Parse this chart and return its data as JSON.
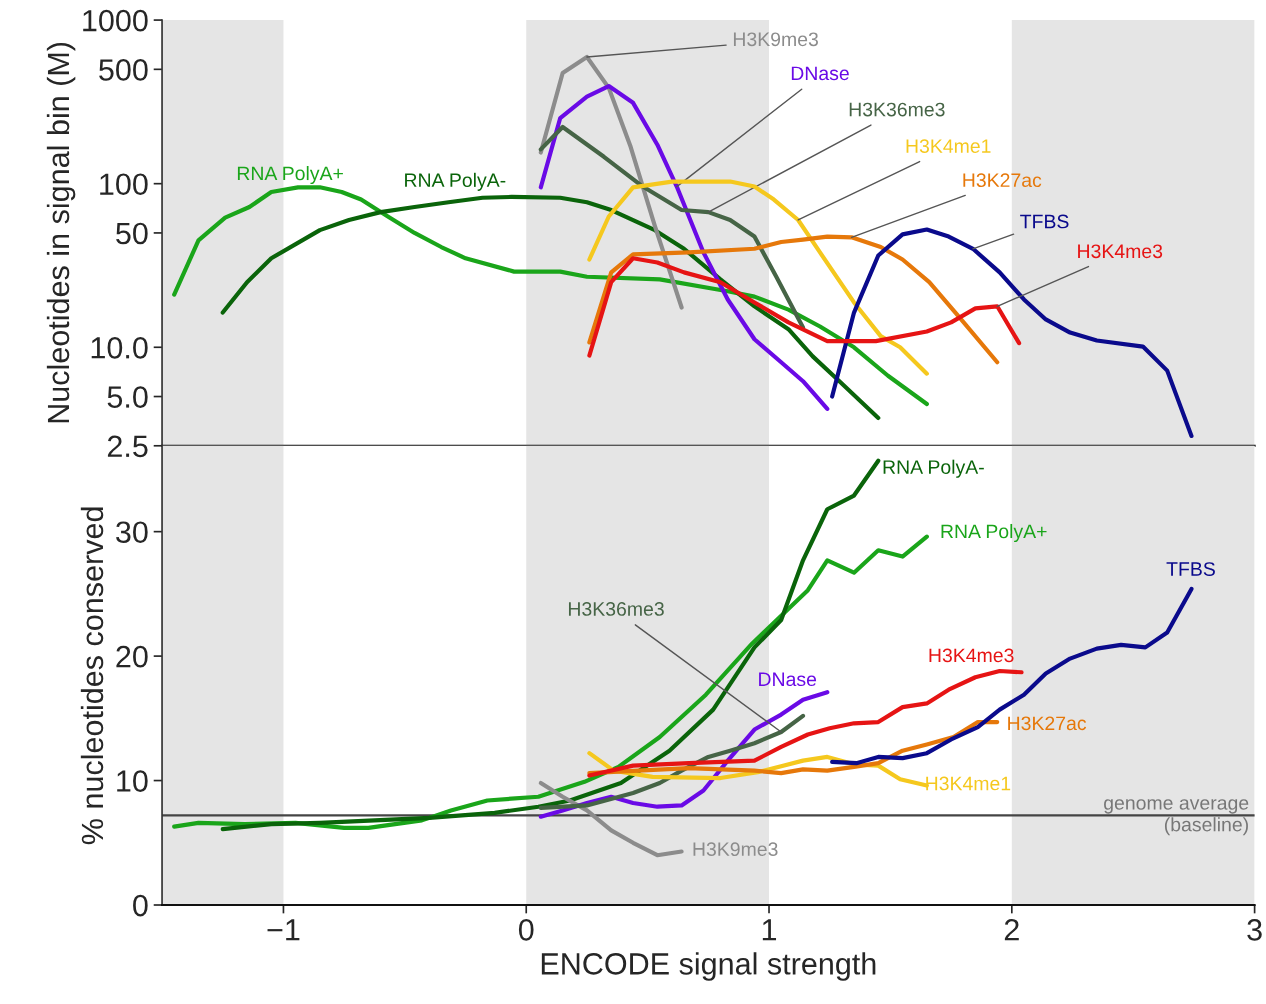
{
  "chart_data": [
    {
      "type": "line",
      "ylabel": "Nucleotides in signal bin (M)",
      "log": "y",
      "grid": false,
      "tick_labels": "y",
      "legend": false,
      "xlim": [
        -1.5,
        3
      ],
      "ylim": [
        2.5,
        1000
      ],
      "yticks": [
        2.5,
        {
          "value": 5,
          "label": "5.0"
        },
        {
          "value": 10,
          "label": "10.0"
        },
        50,
        100,
        500,
        1000
      ],
      "bands": [
        {
          "axis": "x",
          "from": -1.5,
          "to": -1,
          "color": "#e5e5e5"
        },
        {
          "axis": "x",
          "from": 0,
          "to": 1,
          "color": "#e5e5e5"
        },
        {
          "axis": "x",
          "from": 2,
          "to": 3,
          "color": "#e5e5e5"
        }
      ],
      "series": [
        {
          "name": "RNA PolyA+",
          "color": "#1aa51a",
          "x": [
            -1.45,
            -1.35,
            -1.24,
            -1.14,
            -1.05,
            -0.94,
            -0.85,
            -0.76,
            -0.68,
            -0.57,
            -0.46,
            -0.35,
            -0.25,
            -0.05,
            0.14,
            0.25,
            0.55,
            0.83,
            0.94,
            1.08,
            1.21,
            1.35,
            1.49,
            1.65
          ],
          "values": [
            21,
            45,
            62,
            72,
            89,
            95,
            95,
            89,
            80,
            63,
            50,
            41,
            35,
            29,
            29,
            27,
            26,
            22,
            20.4,
            17,
            13.4,
            10,
            6.7,
            4.5
          ]
        },
        {
          "name": "RNA PolyA-",
          "color": "#0a640a",
          "x": [
            -1.25,
            -1.15,
            -1.05,
            -0.85,
            -0.73,
            -0.6,
            -0.46,
            -0.32,
            -0.18,
            -0.06,
            0.14,
            0.25,
            0.35,
            0.53,
            0.65,
            0.8,
            0.94,
            1.08,
            1.18,
            1.28,
            1.45
          ],
          "values": [
            16.3,
            25,
            35,
            52,
            60,
            67,
            72,
            77,
            82,
            83,
            82,
            77,
            69,
            52,
            40,
            26,
            17.8,
            12.9,
            8.8,
            6.4,
            3.7
          ]
        },
        {
          "name": "H3K9me3",
          "color": "#8c8c8c",
          "x": [
            0.06,
            0.15,
            0.25,
            0.34,
            0.43,
            0.53,
            0.64
          ],
          "values": [
            155,
            475,
            595,
            385,
            168,
            55,
            17.5
          ]
        },
        {
          "name": "DNase",
          "color": "#6a0ae6",
          "x": [
            0.06,
            0.14,
            0.25,
            0.34,
            0.44,
            0.54,
            0.62,
            0.73,
            0.83,
            0.94,
            1.05,
            1.14,
            1.24
          ],
          "values": [
            95,
            252,
            340,
            395,
            312,
            173,
            96,
            38,
            19.6,
            11.2,
            8.1,
            6.2,
            4.2
          ]
        },
        {
          "name": "H3K36me3",
          "color": "#466446",
          "x": [
            0.06,
            0.15,
            0.32,
            0.48,
            0.64,
            0.75,
            0.84,
            0.94,
            1.03,
            1.14
          ],
          "values": [
            162,
            222,
            146,
            96,
            69,
            67,
            60,
            47.5,
            27,
            13.2
          ]
        },
        {
          "name": "H3K4me1",
          "color": "#f5c81e",
          "x": [
            0.26,
            0.34,
            0.44,
            0.6,
            0.84,
            0.94,
            1.02,
            1.12,
            1.21,
            1.35,
            1.46,
            1.54,
            1.65
          ],
          "values": [
            34.4,
            63,
            95,
            103,
            103,
            96,
            80,
            60,
            38,
            18.8,
            11.7,
            10,
            6.9
          ]
        },
        {
          "name": "H3K27ac",
          "color": "#e6780a",
          "x": [
            0.26,
            0.35,
            0.44,
            0.67,
            0.94,
            1.05,
            1.14,
            1.24,
            1.34,
            1.46,
            1.55,
            1.66,
            1.78,
            1.94
          ],
          "values": [
            10.7,
            28.7,
            37,
            38,
            40,
            44,
            45.5,
            47.5,
            47,
            41,
            34.4,
            25,
            15.5,
            8.1
          ]
        },
        {
          "name": "TFBS",
          "color": "#0a0a8c",
          "x": [
            1.26,
            1.35,
            1.45,
            1.55,
            1.65,
            1.74,
            1.84,
            1.95,
            2.05,
            2.14,
            2.24,
            2.35,
            2.54,
            2.64,
            2.74
          ],
          "values": [
            5.0,
            16.3,
            36.4,
            49,
            52.5,
            47.5,
            40,
            28.7,
            19.6,
            14.8,
            12.3,
            11,
            10.1,
            7.2,
            2.87
          ]
        },
        {
          "name": "H3K4me3",
          "color": "#e61414",
          "x": [
            0.26,
            0.35,
            0.44,
            0.54,
            0.65,
            0.8,
            0.94,
            1.08,
            1.24,
            1.44,
            1.65,
            1.75,
            1.85,
            1.94,
            2.03
          ],
          "values": [
            8.9,
            25,
            35,
            33,
            28.7,
            25,
            18.8,
            14.2,
            10.9,
            10.9,
            12.5,
            14.2,
            17.3,
            17.8,
            10.6
          ]
        }
      ]
    },
    {
      "type": "line",
      "ylabel": "% nucleotides conserved",
      "xlabel": "ENCODE signal strength",
      "grid": false,
      "legend": false,
      "xlim": [
        -1.5,
        3
      ],
      "ylim": [
        0,
        36.9
      ],
      "xticks": [
        {
          "value": -1,
          "label": "−1"
        },
        0,
        1,
        2,
        3
      ],
      "yticks": [
        0,
        10,
        20,
        30
      ],
      "bands": [
        {
          "axis": "x",
          "from": -1.5,
          "to": -1,
          "color": "#e5e5e5"
        },
        {
          "axis": "x",
          "from": 0,
          "to": 1,
          "color": "#e5e5e5"
        },
        {
          "axis": "x",
          "from": 2,
          "to": 3,
          "color": "#e5e5e5"
        }
      ],
      "ref_lines": [
        {
          "axis": "y",
          "value": 7.2,
          "label": "genome average\n(baseline)",
          "color": "#444444"
        }
      ],
      "series": [
        {
          "name": "RNA PolyA+",
          "color": "#1aa51a",
          "x": [
            -1.45,
            -1.35,
            -1.16,
            -0.95,
            -0.75,
            -0.65,
            -0.43,
            -0.31,
            -0.16,
            0.05,
            0.24,
            0.38,
            0.55,
            0.74,
            0.93,
            1.16,
            1.24,
            1.35,
            1.45,
            1.55,
            1.65
          ],
          "values": [
            6.3,
            6.6,
            6.5,
            6.6,
            6.2,
            6.2,
            6.8,
            7.6,
            8.4,
            8.7,
            9.9,
            11.1,
            13.5,
            16.9,
            21.0,
            25.3,
            27.7,
            26.7,
            28.5,
            28.0,
            29.6
          ]
        },
        {
          "name": "RNA PolyA-",
          "color": "#0a640a",
          "x": [
            -1.25,
            -1.05,
            -0.85,
            -0.4,
            -0.13,
            0.05,
            0.18,
            0.39,
            0.59,
            0.77,
            0.94,
            1.05,
            1.14,
            1.24,
            1.35,
            1.45
          ],
          "values": [
            6.1,
            6.5,
            6.6,
            7.0,
            7.4,
            7.9,
            8.4,
            9.8,
            12.4,
            15.7,
            20.7,
            22.9,
            27.7,
            31.8,
            32.9,
            35.7
          ]
        },
        {
          "name": "H3K9me3",
          "color": "#8c8c8c",
          "x": [
            0.06,
            0.15,
            0.25,
            0.35,
            0.44,
            0.54,
            0.64
          ],
          "values": [
            9.8,
            8.7,
            7.6,
            6.0,
            5.0,
            4.0,
            4.3
          ]
        },
        {
          "name": "DNase",
          "color": "#6a0ae6",
          "x": [
            0.06,
            0.15,
            0.25,
            0.35,
            0.44,
            0.54,
            0.64,
            0.73,
            0.83,
            0.94,
            1.05,
            1.14,
            1.24
          ],
          "values": [
            7.1,
            7.6,
            8.2,
            8.7,
            8.2,
            7.9,
            8.0,
            9.2,
            11.6,
            14.1,
            15.3,
            16.5,
            17.1
          ]
        },
        {
          "name": "H3K36me3",
          "color": "#466446",
          "x": [
            0.06,
            0.25,
            0.44,
            0.55,
            0.64,
            0.75,
            0.84,
            0.94,
            1.05,
            1.14
          ],
          "values": [
            7.8,
            8.0,
            9.0,
            9.8,
            10.8,
            11.9,
            12.4,
            13.0,
            13.9,
            15.2
          ]
        },
        {
          "name": "H3K4me1",
          "color": "#f5c81e",
          "x": [
            0.26,
            0.36,
            0.52,
            0.8,
            0.96,
            1.14,
            1.24,
            1.35,
            1.45,
            1.54,
            1.65
          ],
          "values": [
            12.2,
            10.8,
            10.3,
            10.2,
            10.7,
            11.6,
            11.9,
            11.3,
            11.2,
            10.1,
            9.6
          ]
        },
        {
          "name": "H3K27ac",
          "color": "#e6780a",
          "x": [
            0.26,
            0.46,
            0.67,
            0.94,
            1.05,
            1.14,
            1.24,
            1.35,
            1.45,
            1.55,
            1.65,
            1.76,
            1.86,
            1.94
          ],
          "values": [
            10.6,
            10.8,
            11.0,
            10.8,
            10.6,
            10.9,
            10.8,
            11.1,
            11.4,
            12.4,
            12.9,
            13.5,
            14.7,
            14.7
          ]
        },
        {
          "name": "TFBS",
          "color": "#0a0a8c",
          "x": [
            1.26,
            1.36,
            1.45,
            1.55,
            1.65,
            1.75,
            1.86,
            1.95,
            2.05,
            2.14,
            2.24,
            2.35,
            2.45,
            2.55,
            2.64,
            2.74
          ],
          "values": [
            11.5,
            11.4,
            11.9,
            11.8,
            12.2,
            13.3,
            14.3,
            15.7,
            16.9,
            18.6,
            19.8,
            20.6,
            20.9,
            20.7,
            21.9,
            25.4
          ]
        },
        {
          "name": "H3K4me3",
          "color": "#e61414",
          "x": [
            0.26,
            0.44,
            0.67,
            0.94,
            1.05,
            1.16,
            1.25,
            1.35,
            1.45,
            1.55,
            1.65,
            1.74,
            1.85,
            1.95,
            2.04
          ],
          "values": [
            10.4,
            11.2,
            11.4,
            11.6,
            12.7,
            13.7,
            14.2,
            14.6,
            14.7,
            15.9,
            16.2,
            17.3,
            18.3,
            18.8,
            18.7
          ]
        }
      ]
    }
  ]
}
